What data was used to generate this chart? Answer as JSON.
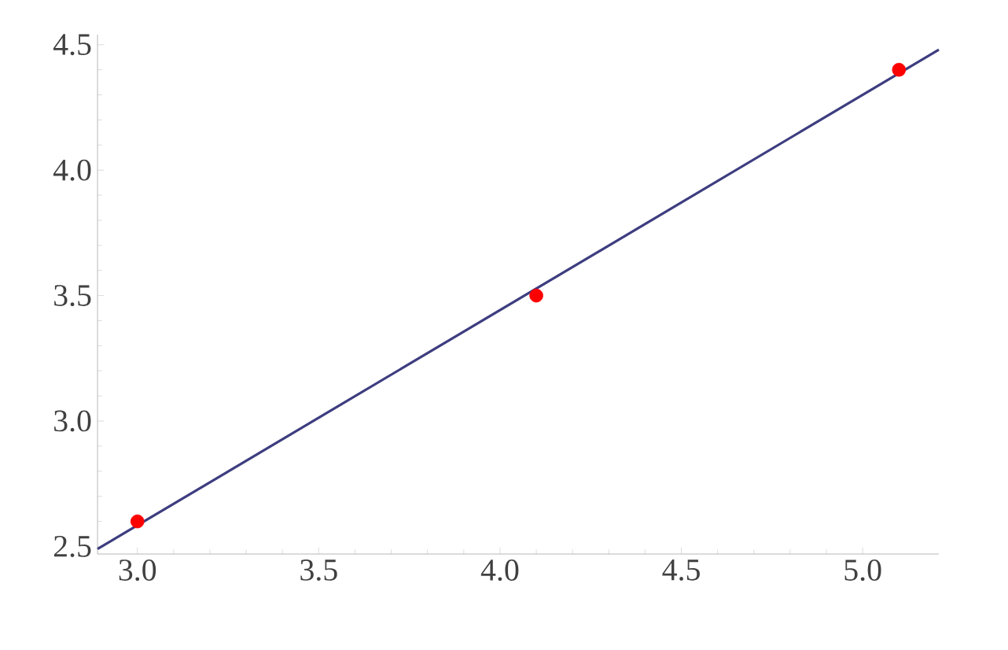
{
  "chart_data": {
    "type": "scatter",
    "xlim": [
      2.89,
      5.21
    ],
    "ylim": [
      2.47,
      4.54
    ],
    "xticks": [
      {
        "value": 3,
        "label": "3.0"
      },
      {
        "value": 3.5,
        "label": "3.5"
      },
      {
        "value": 4,
        "label": "4.0"
      },
      {
        "value": 4.5,
        "label": "4.5"
      },
      {
        "value": 5,
        "label": "5.0"
      }
    ],
    "yticks": [
      {
        "value": 2.5,
        "label": "2.5"
      },
      {
        "value": 3,
        "label": "3.0"
      },
      {
        "value": 3.5,
        "label": "3.5"
      },
      {
        "value": 4,
        "label": "4.0"
      },
      {
        "value": 4.5,
        "label": "4.5"
      }
    ],
    "series": [
      {
        "type": "line",
        "color": "#3d3d80",
        "x": [
          2.89,
          5.21
        ],
        "values": [
          2.49,
          4.48
        ],
        "marker": "none"
      },
      {
        "color": "#ff0000",
        "x": [
          3.0,
          4.1,
          5.1
        ],
        "values": [
          2.6,
          3.5,
          4.4
        ],
        "marker": "circle"
      }
    ]
  }
}
